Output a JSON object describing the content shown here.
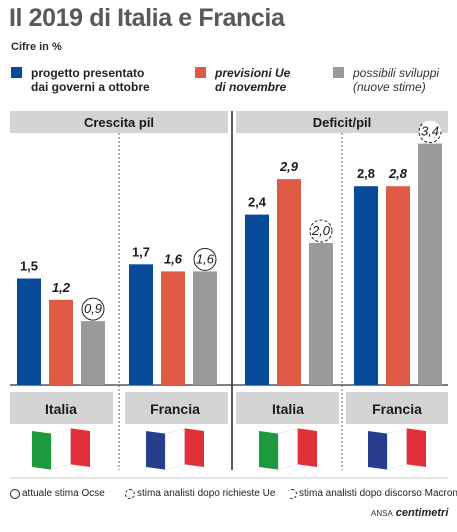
{
  "title": "Il 2019 di Italia e Francia",
  "subtitle": "Cifre in %",
  "legend": [
    {
      "label": "progetto presentato\ndai governi a ottobre",
      "color": "#0a4a9a",
      "style": "bold"
    },
    {
      "label": "previsioni Ue\ndi novembre",
      "color": "#e05a45",
      "style": "bold-italic"
    },
    {
      "label": "possibili sviluppi\n(nuove stime)",
      "color": "#9a9a9a",
      "style": "italic"
    }
  ],
  "chart_data": [
    {
      "type": "bar",
      "title": "Crescita pil",
      "categories": [
        "Italia",
        "Francia"
      ],
      "series": [
        {
          "name": "progetto presentato dai governi a ottobre",
          "values": [
            1.5,
            1.7
          ],
          "labels": [
            "1,5",
            "1,7"
          ]
        },
        {
          "name": "previsioni Ue di novembre",
          "values": [
            1.2,
            1.6
          ],
          "labels": [
            "1,2",
            "1,6"
          ]
        },
        {
          "name": "possibili sviluppi (nuove stime)",
          "values": [
            0.9,
            1.6
          ],
          "labels": [
            "0,9",
            "1,6"
          ],
          "markers": [
            "solid",
            "solid"
          ]
        }
      ]
    },
    {
      "type": "bar",
      "title": "Deficit/pil",
      "categories": [
        "Italia",
        "Francia"
      ],
      "series": [
        {
          "name": "progetto presentato dai governi a ottobre",
          "values": [
            2.4,
            2.8
          ],
          "labels": [
            "2,4",
            "2,8"
          ]
        },
        {
          "name": "previsioni Ue di novembre",
          "values": [
            2.9,
            2.8
          ],
          "labels": [
            "2,9",
            "2,8"
          ]
        },
        {
          "name": "possibili sviluppi (nuove stime)",
          "values": [
            2.0,
            3.4
          ],
          "labels": [
            "2,0",
            "3,4"
          ],
          "markers": [
            "dashed",
            "dashed-partial"
          ]
        }
      ]
    }
  ],
  "countries": [
    {
      "name": "Italia",
      "flag": [
        "#1d9a3e",
        "#ffffff",
        "#e0313a"
      ]
    },
    {
      "name": "Francia",
      "flag": [
        "#263e8c",
        "#ffffff",
        "#e0313a"
      ]
    },
    {
      "name": "Italia",
      "flag": [
        "#1d9a3e",
        "#ffffff",
        "#e0313a"
      ]
    },
    {
      "name": "Francia",
      "flag": [
        "#263e8c",
        "#ffffff",
        "#e0313a"
      ]
    }
  ],
  "footnotes": [
    {
      "label": "attuale stima Ocse",
      "marker": "solid"
    },
    {
      "label": "stima analisti dopo richieste Ue",
      "marker": "dashed"
    },
    {
      "label": "stima analisti dopo discorso Macron",
      "marker": "dashed-partial"
    }
  ],
  "credit": {
    "agency": "ANSA",
    "brand": "centimetri"
  },
  "colors": {
    "panel_header": "#d4d4d4",
    "text": "#1a1a1a",
    "title": "#595959"
  }
}
